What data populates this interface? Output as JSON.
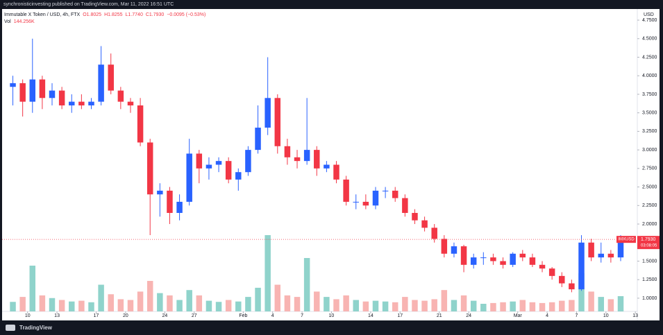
{
  "header": "synchronisticinvesting published on TradingView.com, Mar 11, 2022 16:51 UTC",
  "brand": "TradingView",
  "chart_data": {
    "type": "candlestick",
    "title": "Immutable X Token / USD, 4h, FTX",
    "legend_values": [
      "O1.8025",
      "H1.8255",
      "L1.7740",
      "C1.7930",
      "−0.0095 (−0.53%)"
    ],
    "volume_label": "Vol",
    "volume_value": "144.256K",
    "currency": "USD",
    "symbol_tag": "IMXUSD",
    "last_price": {
      "value": 1.793,
      "label": "1.7930"
    },
    "countdown": "03:08:05",
    "up_color": "#2962ff",
    "down_color": "#f23645",
    "volume_up_color": "#8fd3cb",
    "volume_down_color": "#f8b4b2",
    "xlim": [
      7.4,
      72.2
    ],
    "ylim": [
      0.7,
      4.9
    ],
    "xticks": [
      {
        "value": 10,
        "label": "10"
      },
      {
        "value": 13,
        "label": "13"
      },
      {
        "value": 17,
        "label": "17"
      },
      {
        "value": 20,
        "label": "20"
      },
      {
        "value": 24,
        "label": "24"
      },
      {
        "value": 27,
        "label": "27"
      },
      {
        "value": 32,
        "label": "Feb"
      },
      {
        "value": 35,
        "label": "4"
      },
      {
        "value": 38,
        "label": "7"
      },
      {
        "value": 41,
        "label": "10"
      },
      {
        "value": 45,
        "label": "14"
      },
      {
        "value": 48,
        "label": "17"
      },
      {
        "value": 52,
        "label": "21"
      },
      {
        "value": 55,
        "label": "24"
      },
      {
        "value": 60,
        "label": "Mar"
      },
      {
        "value": 63,
        "label": "4"
      },
      {
        "value": 66,
        "label": "7"
      },
      {
        "value": 69,
        "label": "10"
      },
      {
        "value": 72,
        "label": "13"
      }
    ],
    "yticks": [
      {
        "value": 1,
        "label": "1.0000"
      },
      {
        "value": 1.25,
        "label": "1.2500"
      },
      {
        "value": 1.5,
        "label": "1.5000"
      },
      {
        "value": 1.75,
        "label": "1.7500"
      },
      {
        "value": 2,
        "label": "2.0000"
      },
      {
        "value": 2.25,
        "label": "2.2500"
      },
      {
        "value": 2.5,
        "label": "2.5000"
      },
      {
        "value": 2.75,
        "label": "2.7500"
      },
      {
        "value": 3,
        "label": "3.0000"
      },
      {
        "value": 3.25,
        "label": "3.2500"
      },
      {
        "value": 3.5,
        "label": "3.5000"
      },
      {
        "value": 3.75,
        "label": "3.7500"
      },
      {
        "value": 4,
        "label": "4.0000"
      },
      {
        "value": 4.25,
        "label": "4.2500"
      },
      {
        "value": 4.5,
        "label": "4.5000"
      },
      {
        "value": 4.75,
        "label": "4.7500"
      }
    ],
    "x": [
      8.5,
      9.5,
      10.5,
      11.5,
      12.5,
      13.5,
      14.5,
      15.5,
      16.5,
      17.5,
      18.5,
      19.5,
      20.5,
      21.5,
      22.5,
      23.5,
      24.5,
      25.5,
      26.5,
      27.5,
      28.5,
      29.5,
      30.5,
      31.5,
      32.5,
      33.5,
      34.5,
      35.5,
      36.5,
      37.5,
      38.5,
      39.5,
      40.5,
      41.5,
      42.5,
      43.5,
      44.5,
      45.5,
      46.5,
      47.5,
      48.5,
      49.5,
      50.5,
      51.5,
      52.5,
      53.5,
      54.5,
      55.5,
      56.5,
      57.5,
      58.5,
      59.5,
      60.5,
      61.5,
      62.5,
      63.5,
      64.5,
      65.5,
      66.5,
      67.5,
      68.5,
      69.5,
      70.5
    ],
    "open": [
      3.85,
      3.9,
      3.65,
      3.95,
      3.7,
      3.8,
      3.6,
      3.65,
      3.6,
      3.65,
      4.15,
      3.8,
      3.65,
      3.6,
      3.1,
      2.4,
      2.45,
      2.15,
      2.3,
      2.95,
      2.75,
      2.8,
      2.85,
      2.6,
      2.7,
      3.0,
      3.3,
      3.7,
      3.05,
      2.9,
      2.85,
      3.0,
      2.75,
      2.8,
      2.6,
      2.3,
      2.3,
      2.25,
      2.45,
      2.45,
      2.35,
      2.15,
      2.05,
      1.95,
      1.8,
      1.6,
      1.7,
      1.45,
      1.55,
      1.55,
      1.5,
      1.45,
      1.6,
      1.55,
      1.45,
      1.4,
      1.3,
      1.2,
      1.12,
      1.75,
      1.55,
      1.6,
      1.55
    ],
    "high": [
      4.0,
      3.95,
      4.5,
      4.0,
      3.9,
      3.85,
      3.75,
      3.75,
      3.7,
      4.4,
      4.3,
      3.85,
      3.7,
      3.7,
      3.15,
      2.55,
      2.5,
      2.4,
      3.15,
      3.0,
      2.9,
      2.9,
      2.9,
      2.75,
      3.05,
      3.6,
      4.25,
      3.75,
      3.15,
      3.0,
      3.7,
      3.05,
      2.85,
      2.85,
      2.65,
      2.4,
      2.4,
      2.5,
      2.5,
      2.5,
      2.4,
      2.2,
      2.1,
      2.0,
      1.85,
      1.75,
      1.72,
      1.6,
      1.62,
      1.6,
      1.55,
      1.62,
      1.65,
      1.6,
      1.5,
      1.42,
      1.35,
      1.25,
      1.85,
      1.8,
      1.75,
      1.65,
      1.85
    ],
    "low": [
      3.6,
      3.45,
      3.5,
      3.55,
      3.6,
      3.55,
      3.5,
      3.55,
      3.55,
      3.6,
      3.75,
      3.55,
      3.5,
      3.05,
      1.85,
      2.1,
      2.0,
      2.05,
      2.25,
      2.55,
      2.6,
      2.7,
      2.55,
      2.45,
      2.65,
      2.95,
      3.2,
      2.95,
      2.8,
      2.75,
      2.8,
      2.65,
      2.7,
      2.55,
      2.25,
      2.2,
      2.2,
      2.2,
      2.35,
      2.3,
      2.1,
      2.0,
      1.9,
      1.75,
      1.55,
      1.55,
      1.35,
      1.4,
      1.45,
      1.45,
      1.4,
      1.42,
      1.5,
      1.42,
      1.35,
      1.25,
      1.15,
      1.08,
      1.1,
      1.5,
      1.48,
      1.48,
      1.5
    ],
    "close": [
      3.9,
      3.65,
      3.95,
      3.7,
      3.8,
      3.6,
      3.65,
      3.6,
      3.65,
      4.15,
      3.8,
      3.65,
      3.6,
      3.1,
      2.4,
      2.45,
      2.15,
      2.3,
      2.95,
      2.75,
      2.8,
      2.85,
      2.6,
      2.7,
      3.0,
      3.3,
      3.7,
      3.05,
      2.9,
      2.85,
      3.0,
      2.75,
      2.8,
      2.6,
      2.3,
      2.3,
      2.25,
      2.45,
      2.45,
      2.35,
      2.15,
      2.05,
      1.95,
      1.8,
      1.6,
      1.7,
      1.45,
      1.55,
      1.55,
      1.5,
      1.45,
      1.6,
      1.55,
      1.45,
      1.4,
      1.3,
      1.2,
      1.12,
      1.75,
      1.55,
      1.6,
      1.55,
      1.793
    ],
    "volume": [
      250,
      380,
      1200,
      420,
      350,
      300,
      260,
      280,
      240,
      700,
      450,
      320,
      300,
      520,
      800,
      480,
      420,
      300,
      560,
      420,
      280,
      250,
      300,
      260,
      380,
      620,
      2000,
      700,
      420,
      380,
      1400,
      520,
      380,
      320,
      420,
      300,
      260,
      280,
      260,
      240,
      380,
      300,
      280,
      320,
      560,
      300,
      420,
      280,
      200,
      220,
      240,
      260,
      300,
      240,
      220,
      240,
      280,
      300,
      1000,
      520,
      380,
      320,
      400
    ]
  }
}
